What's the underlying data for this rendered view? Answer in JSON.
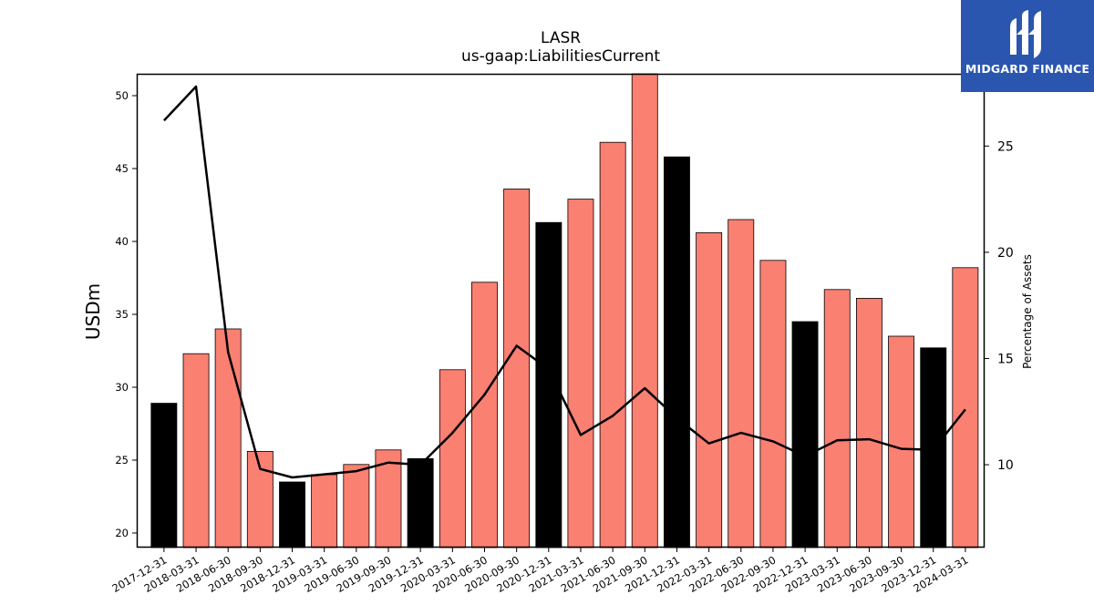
{
  "title": "LASR",
  "subtitle": "us-gaap:LiabilitiesCurrent",
  "brand": {
    "name": "MIDGARD FINANCE",
    "bg_color": "#2a56b0",
    "icon": "midgard-logo-icon"
  },
  "colors": {
    "bar_regular": "#fa8072",
    "bar_highlight": "#000000",
    "line": "#000000"
  },
  "chart_data": {
    "type": "bar",
    "categories": [
      "2017-12-31",
      "2018-03-31",
      "2018-06-30",
      "2018-09-30",
      "2018-12-31",
      "2019-03-31",
      "2019-06-30",
      "2019-09-30",
      "2019-12-31",
      "2020-03-31",
      "2020-06-30",
      "2020-09-30",
      "2020-12-31",
      "2021-03-31",
      "2021-06-30",
      "2021-09-30",
      "2021-12-31",
      "2022-03-31",
      "2022-06-30",
      "2022-09-30",
      "2022-12-31",
      "2023-03-31",
      "2023-06-30",
      "2023-09-30",
      "2023-12-31",
      "2024-03-31"
    ],
    "series": [
      {
        "values": [
          28.9,
          32.3,
          34.0,
          25.6,
          23.5,
          24.0,
          24.7,
          25.7,
          25.1,
          31.2,
          37.2,
          43.6,
          41.3,
          42.9,
          46.8,
          51.6,
          45.8,
          40.6,
          41.5,
          38.7,
          34.5,
          36.7,
          36.1,
          33.5,
          32.7,
          38.2
        ],
        "highlighted": [
          true,
          false,
          false,
          false,
          true,
          false,
          false,
          false,
          true,
          false,
          false,
          false,
          true,
          false,
          false,
          false,
          true,
          false,
          false,
          false,
          true,
          false,
          false,
          false,
          true,
          false
        ],
        "axis": "left"
      },
      {
        "type": "line",
        "values": [
          26.2,
          27.8,
          15.3,
          9.8,
          9.4,
          9.55,
          9.7,
          10.1,
          10.0,
          11.5,
          13.3,
          15.6,
          14.5,
          11.4,
          12.3,
          13.6,
          12.2,
          11.0,
          11.5,
          11.1,
          10.4,
          11.15,
          11.2,
          10.75,
          10.7,
          12.6
        ],
        "axis": "right"
      }
    ],
    "ylabel": "USDm",
    "y2label": "Percentage of Assets",
    "ylim": [
      19,
      51.5
    ],
    "y2lim": [
      6.1,
      28.4
    ],
    "yticks": [
      "20",
      "25",
      "30",
      "35",
      "40",
      "45",
      "50"
    ],
    "y2ticks": [
      "10",
      "15",
      "20",
      "25"
    ],
    "grid": false
  }
}
